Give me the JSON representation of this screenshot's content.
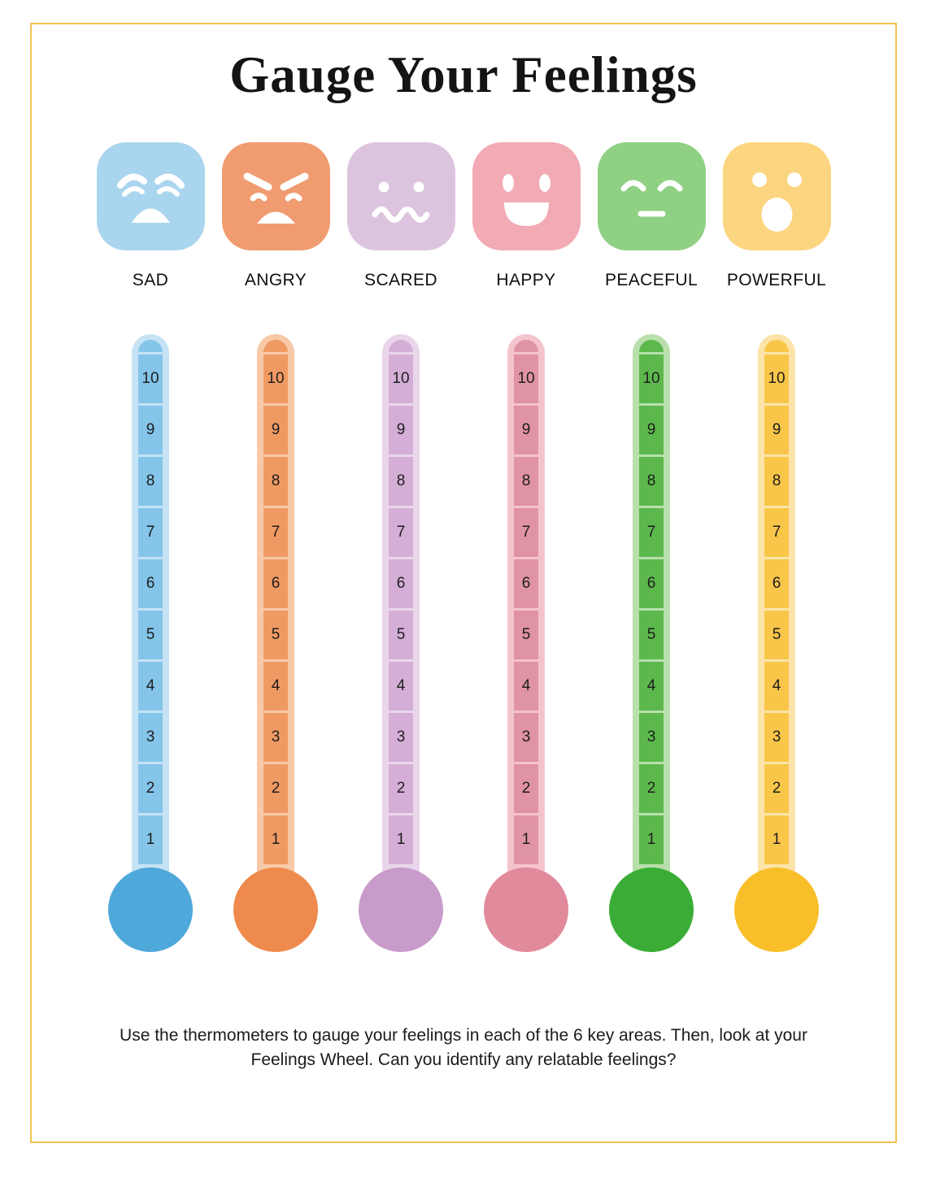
{
  "page": {
    "title": "Gauge Your Feelings",
    "footer": "Use the thermometers to gauge your feelings in each of the 6 key areas. Then, look at your Feelings Wheel. Can you identify any relatable feelings?",
    "border_color": "#f2c451",
    "background_color": "#ffffff"
  },
  "scale_values": [
    "10",
    "9",
    "8",
    "7",
    "6",
    "5",
    "4",
    "3",
    "2",
    "1"
  ],
  "emotions": [
    {
      "label": "SAD",
      "icon": "sad-face-icon",
      "colors": {
        "face": "#a9d5ee",
        "tube": "#c5e3f5",
        "fill": "#84c5e9",
        "bulb": "#4fa8da"
      }
    },
    {
      "label": "ANGRY",
      "icon": "angry-face-icon",
      "colors": {
        "face": "#f19b70",
        "tube": "#f7c9a8",
        "fill": "#f09a63",
        "bulb": "#ee8a4d"
      }
    },
    {
      "label": "SCARED",
      "icon": "scared-face-icon",
      "colors": {
        "face": "#dcc4de",
        "tube": "#e9d6ea",
        "fill": "#d5aed7",
        "bulb": "#c99bcb"
      }
    },
    {
      "label": "HAPPY",
      "icon": "happy-face-icon",
      "colors": {
        "face": "#f2aab5",
        "tube": "#f4c4cc",
        "fill": "#e093a2",
        "bulb": "#e18a9b"
      }
    },
    {
      "label": "PEACEFUL",
      "icon": "peaceful-face-icon",
      "colors": {
        "face": "#8fd083",
        "tube": "#b9e0ac",
        "fill": "#5cb84c",
        "bulb": "#3bad36"
      }
    },
    {
      "label": "POWERFUL",
      "icon": "powerful-face-icon",
      "colors": {
        "face": "#fbd57f",
        "tube": "#fce4a9",
        "fill": "#f9c649",
        "bulb": "#f9bf29"
      }
    }
  ]
}
